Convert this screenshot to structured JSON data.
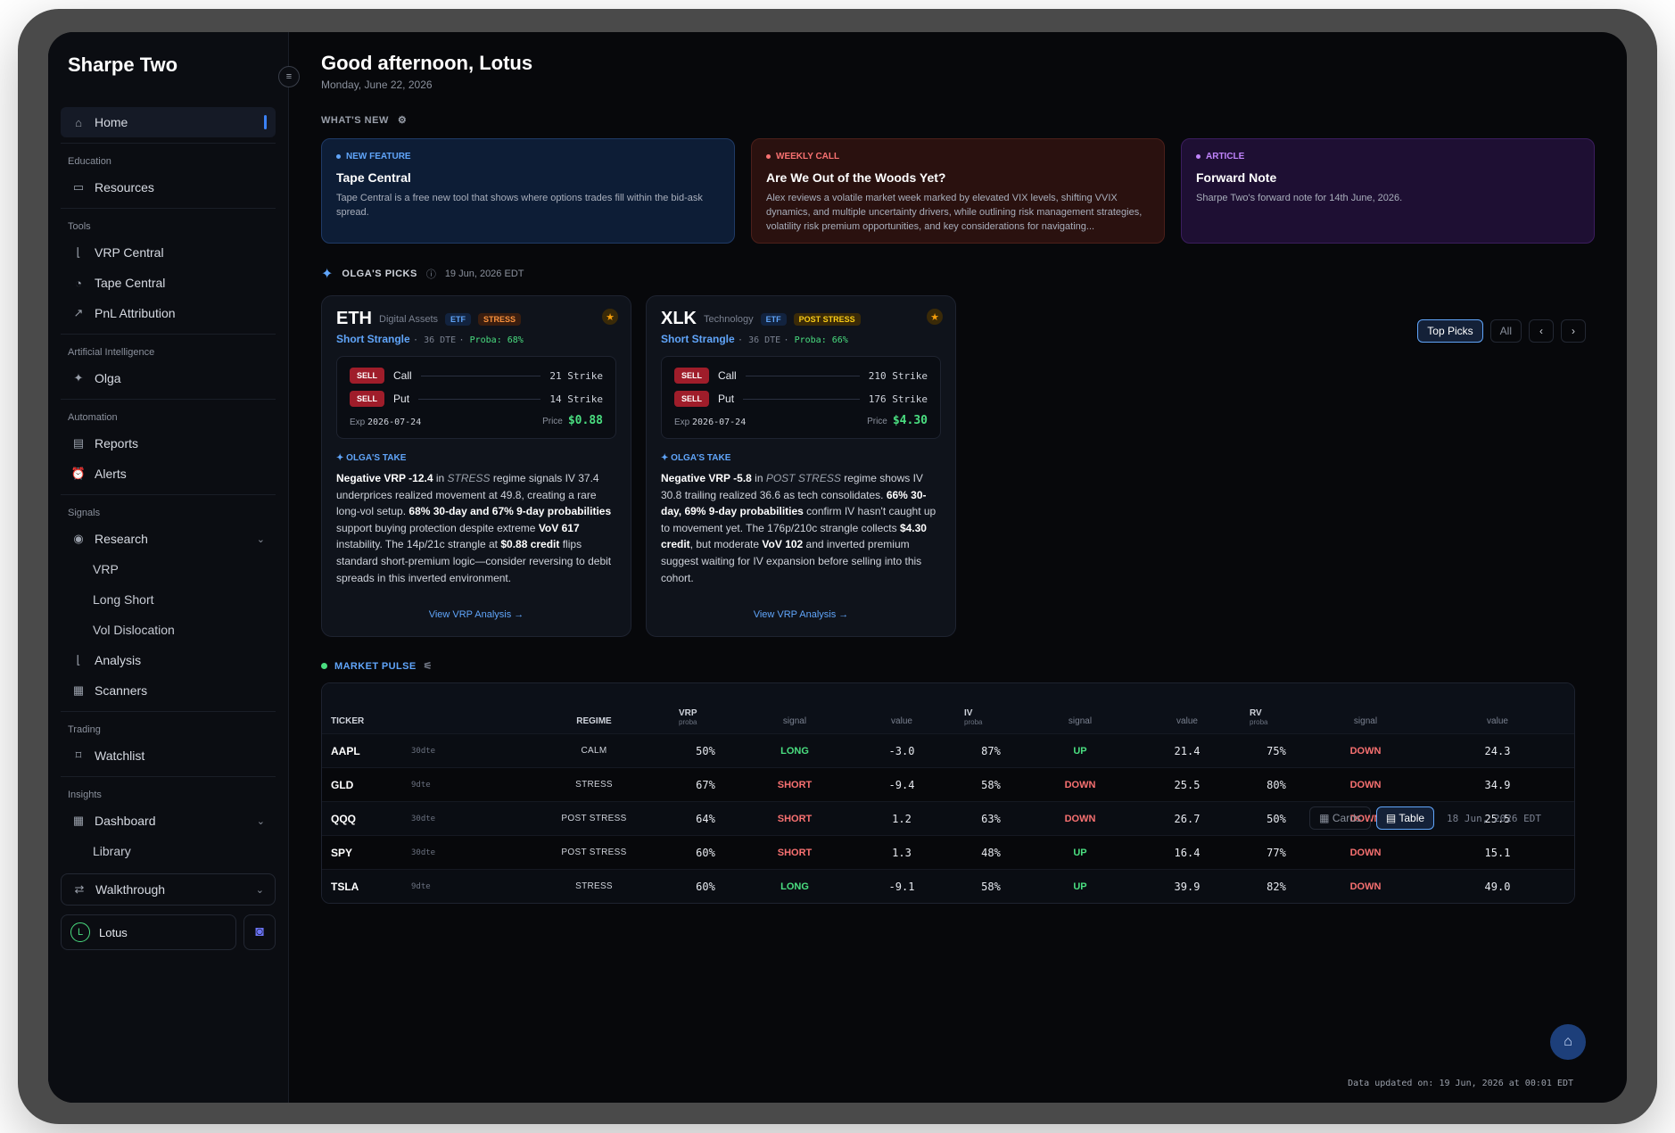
{
  "brand": "Sharpe Two",
  "sidebar": {
    "home": "Home",
    "sections": {
      "education": "Education",
      "tools": "Tools",
      "ai": "Artificial Intelligence",
      "automation": "Automation",
      "signals": "Signals",
      "trading": "Trading",
      "insights": "Insights"
    },
    "resources": "Resources",
    "vrp_central": "VRP Central",
    "tape_central": "Tape Central",
    "pnl": "PnL Attribution",
    "olga": "Olga",
    "reports": "Reports",
    "alerts": "Alerts",
    "research": "Research",
    "vrp": "VRP",
    "long_short": "Long Short",
    "vol_dislocation": "Vol Dislocation",
    "analysis": "Analysis",
    "scanners": "Scanners",
    "watchlist": "Watchlist",
    "dashboard": "Dashboard",
    "library": "Library",
    "walkthrough": "Walkthrough",
    "user": "Lotus",
    "user_initial": "L"
  },
  "header": {
    "greeting": "Good afternoon, Lotus",
    "date": "Monday, June 22, 2026"
  },
  "whats_new": {
    "title": "WHAT'S NEW",
    "items": [
      {
        "tag": "NEW FEATURE",
        "title": "Tape Central",
        "desc": "Tape Central is a free new tool that shows where options trades fill within the bid-ask spread."
      },
      {
        "tag": "WEEKLY CALL",
        "title": "Are We Out of the Woods Yet?",
        "desc": "Alex reviews a volatile market week marked by elevated VIX levels, shifting VVIX dynamics, and multiple uncertainty drivers, while outlining risk management strategies, volatility risk premium opportunities, and key considerations for navigating..."
      },
      {
        "tag": "ARTICLE",
        "title": "Forward Note",
        "desc": "Sharpe Two's forward note for 14th June, 2026."
      }
    ]
  },
  "picks": {
    "title": "OLGA'S PICKS",
    "date": "19 Jun, 2026 EDT",
    "top_picks": "Top Picks",
    "all": "All",
    "take_title": "OLGA'S TAKE",
    "link": "View VRP Analysis",
    "cards": [
      {
        "ticker": "ETH",
        "category": "Digital Assets",
        "etf": "ETF",
        "regime": "STRESS",
        "strategy": "Short Strangle",
        "dte": "36 DTE",
        "proba": "Proba: 68%",
        "call_label": "Call",
        "call_strike": "21 Strike",
        "put_label": "Put",
        "put_strike": "14 Strike",
        "sell": "SELL",
        "exp_label": "Exp",
        "exp": "2026-07-24",
        "price_label": "Price",
        "price": "$0.88",
        "take_a": "Negative VRP -12.4",
        "take_b": " in ",
        "take_c": "STRESS",
        "take_d": " regime signals IV 37.4 underprices realized movement at 49.8, creating a rare long-vol setup. ",
        "take_e": "68% 30-day and 67% 9-day probabilities",
        "take_f": " support buying protection despite extreme ",
        "take_g": "VoV 617",
        "take_h": " instability. The 14p/21c strangle at ",
        "take_i": "$0.88 credit",
        "take_j": " flips standard short-premium logic—consider reversing to debit spreads in this inverted environment."
      },
      {
        "ticker": "XLK",
        "category": "Technology",
        "etf": "ETF",
        "regime": "POST STRESS",
        "strategy": "Short Strangle",
        "dte": "36 DTE",
        "proba": "Proba: 66%",
        "call_label": "Call",
        "call_strike": "210 Strike",
        "put_label": "Put",
        "put_strike": "176 Strike",
        "sell": "SELL",
        "exp_label": "Exp",
        "exp": "2026-07-24",
        "price_label": "Price",
        "price": "$4.30",
        "take_a": "Negative VRP -5.8",
        "take_b": " in ",
        "take_c": "POST STRESS",
        "take_d": " regime shows IV 30.8 trailing realized 36.6 as tech consolidates. ",
        "take_e": "66% 30-day, 69% 9-day probabilities",
        "take_f": " confirm IV hasn't caught up to movement yet. The 176p/210c strangle collects ",
        "take_g": "$4.30 credit",
        "take_h": ", but moderate ",
        "take_i": "VoV 102",
        "take_j": " and inverted premium suggest waiting for IV expansion before selling into this cohort."
      }
    ]
  },
  "pulse": {
    "title": "MARKET PULSE",
    "cards": "Cards",
    "table": "Table",
    "as_of": "18 Jun, 2026 EDT",
    "headers": {
      "ticker": "TICKER",
      "regime": "REGIME",
      "vrp": "VRP",
      "iv": "IV",
      "rv": "RV",
      "proba": "proba",
      "signal": "signal",
      "value": "value"
    },
    "rows": [
      {
        "ticker": "AAPL",
        "dte": "30dte",
        "regime": "CALM",
        "vrp_p": "50%",
        "vrp_s": "LONG",
        "vrp_v": "-3.0",
        "iv_p": "87%",
        "iv_s": "UP",
        "iv_v": "21.4",
        "rv_p": "75%",
        "rv_s": "DOWN",
        "rv_v": "24.3"
      },
      {
        "ticker": "GLD",
        "dte": "9dte",
        "regime": "STRESS",
        "vrp_p": "67%",
        "vrp_s": "SHORT",
        "vrp_v": "-9.4",
        "iv_p": "58%",
        "iv_s": "DOWN",
        "iv_v": "25.5",
        "rv_p": "80%",
        "rv_s": "DOWN",
        "rv_v": "34.9"
      },
      {
        "ticker": "QQQ",
        "dte": "30dte",
        "regime": "POST STRESS",
        "vrp_p": "64%",
        "vrp_s": "SHORT",
        "vrp_v": "1.2",
        "iv_p": "63%",
        "iv_s": "DOWN",
        "iv_v": "26.7",
        "rv_p": "50%",
        "rv_s": "DOWN",
        "rv_v": "25.5"
      },
      {
        "ticker": "SPY",
        "dte": "30dte",
        "regime": "POST STRESS",
        "vrp_p": "60%",
        "vrp_s": "SHORT",
        "vrp_v": "1.3",
        "iv_p": "48%",
        "iv_s": "UP",
        "iv_v": "16.4",
        "rv_p": "77%",
        "rv_s": "DOWN",
        "rv_v": "15.1"
      },
      {
        "ticker": "TSLA",
        "dte": "9dte",
        "regime": "STRESS",
        "vrp_p": "60%",
        "vrp_s": "LONG",
        "vrp_v": "-9.1",
        "iv_p": "58%",
        "iv_s": "UP",
        "iv_v": "39.9",
        "rv_p": "82%",
        "rv_s": "DOWN",
        "rv_v": "49.0"
      }
    ],
    "updated": "Data updated on: 19 Jun, 2026 at 00:01 EDT"
  },
  "colors": {
    "accent": "#3b82f6",
    "positive": "#4ade80",
    "negative": "#f87171",
    "background": "#07080b"
  }
}
